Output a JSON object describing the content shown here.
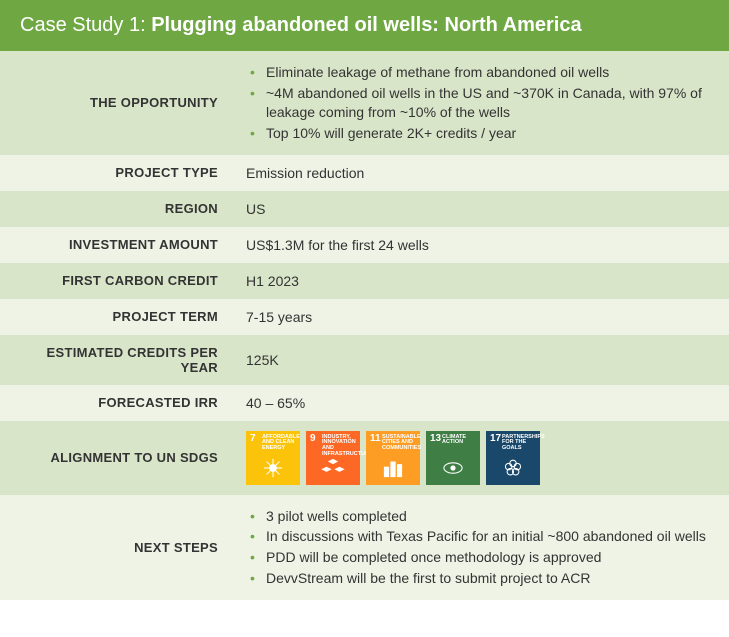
{
  "header": {
    "prefix": "Case Study 1: ",
    "title": "Plugging abandoned oil wells: North America",
    "bg": "#6fa843",
    "text_color": "#ffffff"
  },
  "row_colors": {
    "dark": "#d9e5c9",
    "light": "#eef3e6"
  },
  "bullet_color": "#6fa843",
  "rows": [
    {
      "label": "THE OPPORTUNITY",
      "shade": "dark",
      "type": "bullets",
      "items": [
        "Eliminate leakage of methane from abandoned oil wells",
        "~4M abandoned oil wells in the US and ~370K in Canada, with 97% of leakage coming from ~10% of the wells",
        "Top 10% will generate 2K+ credits / year"
      ]
    },
    {
      "label": "PROJECT TYPE",
      "shade": "light",
      "type": "text",
      "value": "Emission reduction"
    },
    {
      "label": "REGION",
      "shade": "dark",
      "type": "text",
      "value": "US"
    },
    {
      "label": "INVESTMENT AMOUNT",
      "shade": "light",
      "type": "text",
      "value": "US$1.3M for the first 24 wells"
    },
    {
      "label": "FIRST CARBON CREDIT",
      "shade": "dark",
      "type": "text",
      "value": "H1 2023"
    },
    {
      "label": "PROJECT TERM",
      "shade": "light",
      "type": "text",
      "value": "7-15 years"
    },
    {
      "label": "ESTIMATED CREDITS PER YEAR",
      "shade": "dark",
      "type": "text",
      "value": "125K"
    },
    {
      "label": "FORECASTED IRR",
      "shade": "light",
      "type": "text",
      "value": "40 – 65%"
    },
    {
      "label": "ALIGNMENT TO UN SDGS",
      "shade": "dark",
      "type": "sdgs",
      "sdgs": [
        {
          "num": "7",
          "text": "AFFORDABLE AND CLEAN ENERGY",
          "color": "#fcc30b",
          "icon": "sun"
        },
        {
          "num": "9",
          "text": "INDUSTRY, INNOVATION AND INFRASTRUCTURE",
          "color": "#fd6925",
          "icon": "cubes"
        },
        {
          "num": "11",
          "text": "SUSTAINABLE CITIES AND COMMUNITIES",
          "color": "#fd9d24",
          "icon": "buildings"
        },
        {
          "num": "13",
          "text": "CLIMATE ACTION",
          "color": "#3f7e44",
          "icon": "eye"
        },
        {
          "num": "17",
          "text": "PARTNERSHIPS FOR THE GOALS",
          "color": "#19486a",
          "icon": "rings"
        }
      ]
    },
    {
      "label": "NEXT STEPS",
      "shade": "light",
      "type": "bullets",
      "label_color": "green",
      "items": [
        "3 pilot wells completed",
        "In discussions with Texas Pacific for an initial ~800 abandoned oil wells",
        "PDD will be completed once methodology is approved",
        "DevvStream will be the first to submit project to ACR"
      ]
    }
  ]
}
